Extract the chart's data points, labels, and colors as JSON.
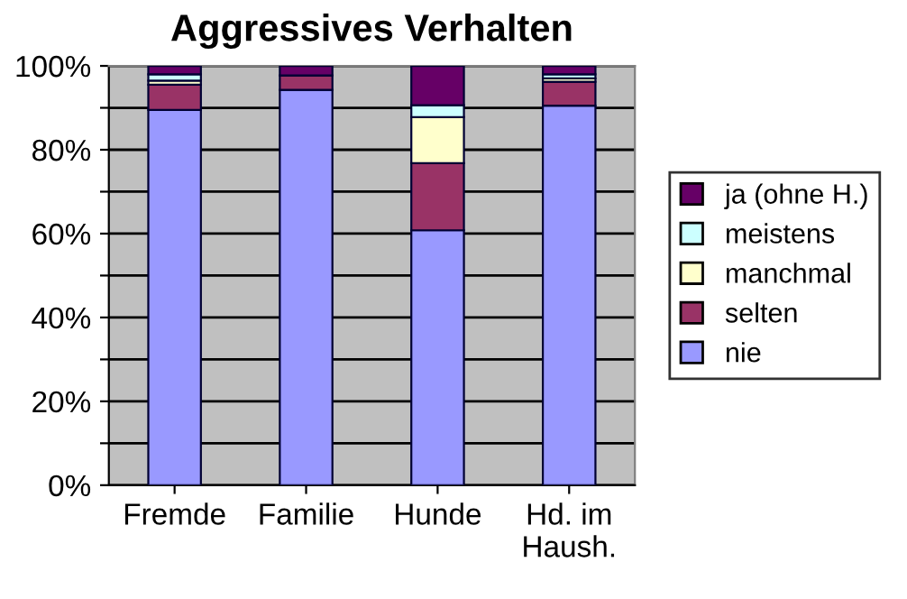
{
  "chart_data": {
    "type": "bar",
    "title": "Aggressives Verhalten",
    "stacked": true,
    "categories": [
      "Fremde",
      "Familie",
      "Hunde",
      "Hd. im\nHaush."
    ],
    "series": [
      {
        "name": "nie",
        "color": "#9999ff",
        "values": [
          89.5,
          94.3,
          60.8,
          90.5
        ]
      },
      {
        "name": "selten",
        "color": "#993366",
        "values": [
          6,
          3.4,
          16,
          5.7
        ]
      },
      {
        "name": "manchmal",
        "color": "#ffffcc",
        "values": [
          1,
          null,
          11,
          0.8
        ]
      },
      {
        "name": "meistens",
        "color": "#ccffff",
        "values": [
          1.5,
          null,
          2.8,
          1
        ]
      },
      {
        "name": "ja (ohne H.)",
        "color": "#660066",
        "values": [
          2,
          2.3,
          9.4,
          2
        ]
      }
    ],
    "ylim": [
      0,
      100
    ],
    "yticks": [
      {
        "value": 0,
        "label": "0%"
      },
      {
        "value": 10,
        "label": null
      },
      {
        "value": 20,
        "label": "20%"
      },
      {
        "value": 30,
        "label": null
      },
      {
        "value": 40,
        "label": "40%"
      },
      {
        "value": 50,
        "label": null
      },
      {
        "value": 60,
        "label": "60%"
      },
      {
        "value": 70,
        "label": null
      },
      {
        "value": 80,
        "label": "80%"
      },
      {
        "value": 90,
        "label": null
      },
      {
        "value": 100,
        "label": "100%"
      }
    ],
    "grid": "y",
    "legend": "right"
  }
}
